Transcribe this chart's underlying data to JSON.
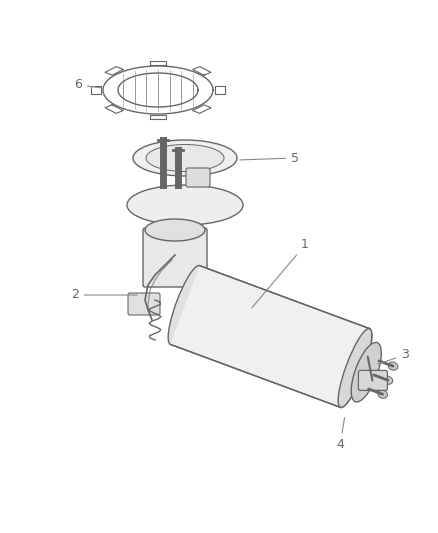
{
  "background_color": "#ffffff",
  "line_color": "#666666",
  "label_color": "#666666",
  "figsize": [
    4.38,
    5.33
  ],
  "dpi": 100,
  "img_xlim": [
    0,
    438
  ],
  "img_ylim": [
    0,
    533
  ]
}
